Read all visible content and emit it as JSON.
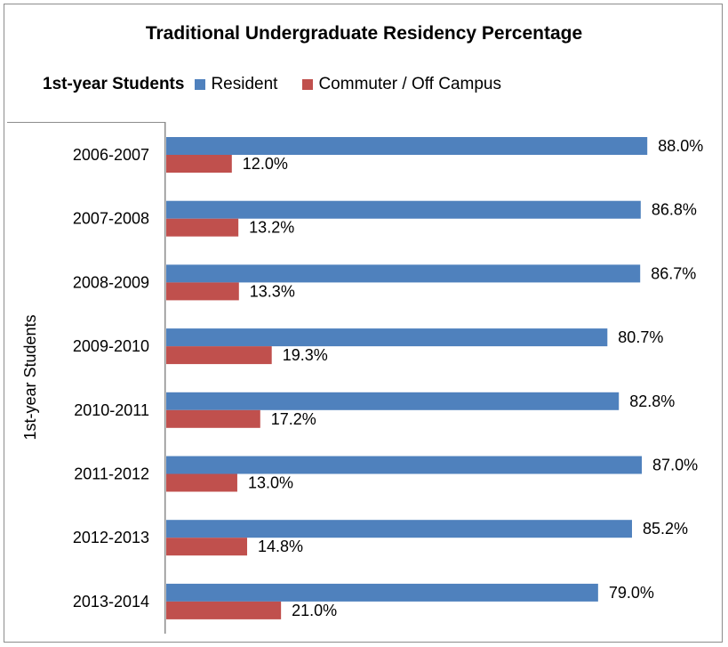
{
  "chart_data": {
    "type": "bar",
    "orientation": "horizontal",
    "title": "Traditional Undergraduate Residency Percentage",
    "legend_heading": "1st-year Students",
    "group_label": "1st-year Students",
    "categories": [
      "2006-2007",
      "2007-2008",
      "2008-2009",
      "2009-2010",
      "2010-2011",
      "2011-2012",
      "2012-2013",
      "2013-2014"
    ],
    "series": [
      {
        "name": "Resident",
        "color": "#4f81bd",
        "values": [
          88.0,
          86.8,
          86.7,
          80.7,
          82.8,
          87.0,
          85.2,
          79.0
        ],
        "labels": [
          "88.0%",
          "86.8%",
          "86.7%",
          "80.7%",
          "82.8%",
          "87.0%",
          "85.2%",
          "79.0%"
        ]
      },
      {
        "name": "Commuter / Off Campus",
        "color": "#c0504d",
        "values": [
          12.0,
          13.2,
          13.3,
          19.3,
          17.2,
          13.0,
          14.8,
          21.0
        ],
        "labels": [
          "12.0%",
          "13.2%",
          "13.3%",
          "19.3%",
          "17.2%",
          "13.0%",
          "14.8%",
          "21.0%"
        ]
      }
    ],
    "xlim": [
      0,
      100
    ],
    "grid": false,
    "legend_position": "top"
  }
}
